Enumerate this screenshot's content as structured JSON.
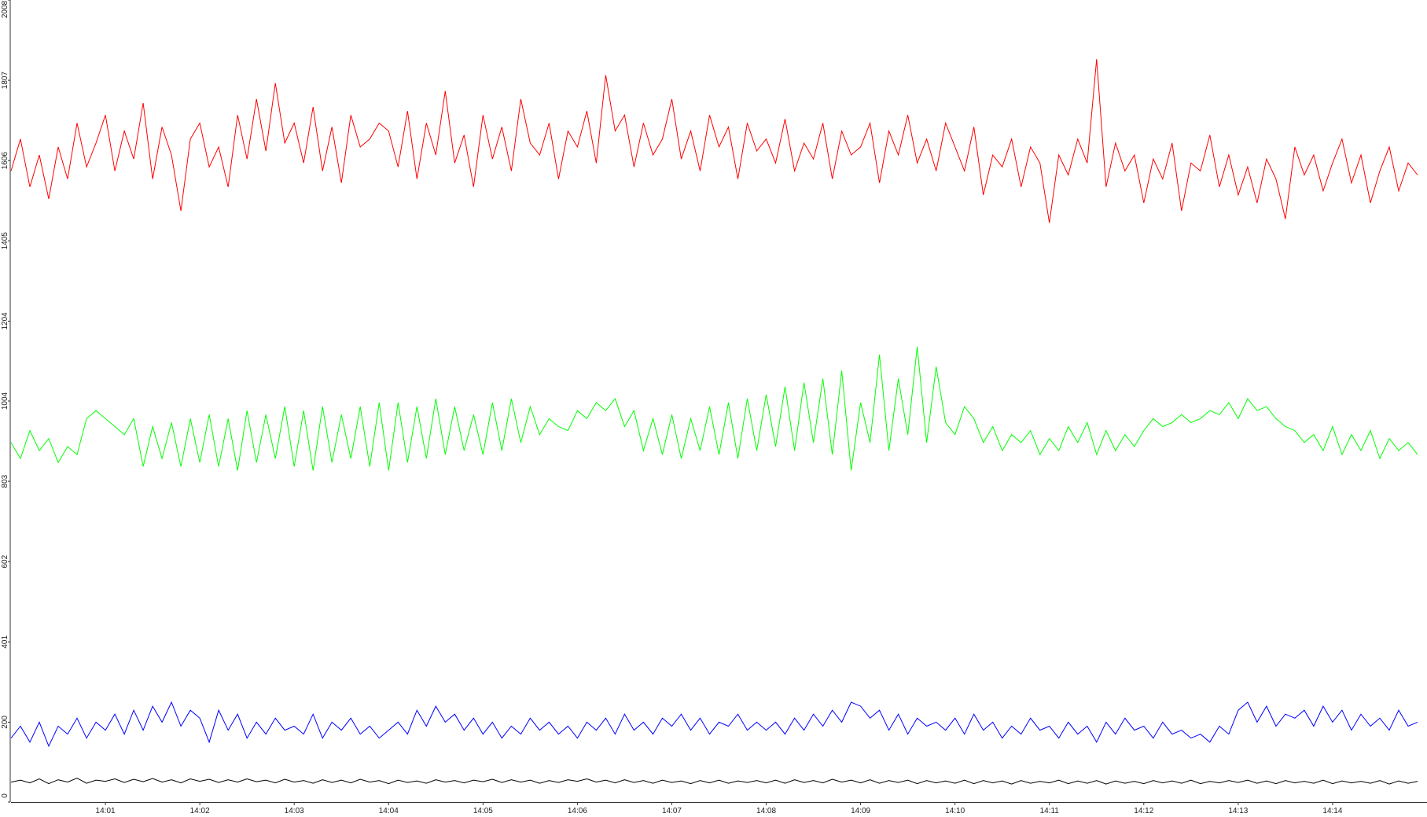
{
  "chart_data": {
    "type": "line",
    "categories": [
      null,
      null,
      null,
      null,
      null,
      null,
      null,
      null,
      null,
      null,
      "14:01",
      null,
      null,
      null,
      null,
      null,
      null,
      null,
      null,
      null,
      "14:02",
      null,
      null,
      null,
      null,
      null,
      null,
      null,
      null,
      null,
      "14:03",
      null,
      null,
      null,
      null,
      null,
      null,
      null,
      null,
      null,
      "14:04",
      null,
      null,
      null,
      null,
      null,
      null,
      null,
      null,
      null,
      "14:05",
      null,
      null,
      null,
      null,
      null,
      null,
      null,
      null,
      null,
      "14:06",
      null,
      null,
      null,
      null,
      null,
      null,
      null,
      null,
      null,
      "14:07",
      null,
      null,
      null,
      null,
      null,
      null,
      null,
      null,
      null,
      "14:08",
      null,
      null,
      null,
      null,
      null,
      null,
      null,
      null,
      null,
      "14:09",
      null,
      null,
      null,
      null,
      null,
      null,
      null,
      null,
      null,
      "14:10",
      null,
      null,
      null,
      null,
      null,
      null,
      null,
      null,
      null,
      "14:11",
      null,
      null,
      null,
      null,
      null,
      null,
      null,
      null,
      null,
      "14:12",
      null,
      null,
      null,
      null,
      null,
      null,
      null,
      null,
      null,
      "14:13",
      null,
      null,
      null,
      null,
      null,
      null,
      null,
      null,
      null,
      "14:14",
      null,
      null,
      null,
      null,
      null,
      null,
      null,
      null,
      null
    ],
    "series": [
      {
        "color": "#ff0000",
        "values": [
          1580,
          1660,
          1540,
          1620,
          1510,
          1640,
          1560,
          1700,
          1590,
          1650,
          1720,
          1580,
          1680,
          1610,
          1750,
          1560,
          1690,
          1620,
          1480,
          1660,
          1700,
          1590,
          1640,
          1540,
          1720,
          1610,
          1760,
          1630,
          1800,
          1650,
          1700,
          1600,
          1740,
          1580,
          1690,
          1550,
          1720,
          1640,
          1660,
          1700,
          1680,
          1590,
          1730,
          1560,
          1700,
          1620,
          1780,
          1600,
          1670,
          1540,
          1720,
          1610,
          1690,
          1580,
          1760,
          1650,
          1620,
          1700,
          1560,
          1680,
          1640,
          1730,
          1600,
          1820,
          1680,
          1720,
          1590,
          1700,
          1620,
          1660,
          1760,
          1610,
          1680,
          1580,
          1720,
          1640,
          1690,
          1560,
          1700,
          1630,
          1660,
          1600,
          1710,
          1580,
          1650,
          1610,
          1700,
          1560,
          1680,
          1620,
          1640,
          1700,
          1550,
          1680,
          1620,
          1720,
          1600,
          1660,
          1580,
          1700,
          1640,
          1580,
          1690,
          1520,
          1620,
          1590,
          1660,
          1540,
          1640,
          1600,
          1450,
          1620,
          1570,
          1660,
          1600,
          1860,
          1540,
          1650,
          1580,
          1620,
          1500,
          1610,
          1560,
          1650,
          1480,
          1600,
          1580,
          1670,
          1540,
          1620,
          1520,
          1590,
          1500,
          1610,
          1560,
          1460,
          1640,
          1570,
          1620,
          1530,
          1600,
          1660,
          1550,
          1620,
          1500,
          1580,
          1640,
          1530,
          1600,
          1570
        ]
      },
      {
        "color": "#00ff00",
        "values": [
          900,
          860,
          930,
          880,
          910,
          850,
          890,
          870,
          960,
          980,
          960,
          940,
          920,
          960,
          840,
          940,
          860,
          950,
          840,
          960,
          850,
          970,
          840,
          960,
          830,
          980,
          850,
          970,
          860,
          990,
          840,
          980,
          830,
          990,
          850,
          970,
          860,
          990,
          840,
          1000,
          830,
          1000,
          850,
          990,
          860,
          1010,
          870,
          990,
          880,
          970,
          870,
          1000,
          880,
          1010,
          900,
          990,
          920,
          960,
          940,
          930,
          980,
          960,
          1000,
          980,
          1010,
          940,
          980,
          880,
          960,
          870,
          970,
          860,
          960,
          880,
          990,
          870,
          1000,
          860,
          1010,
          880,
          1020,
          890,
          1040,
          880,
          1050,
          900,
          1060,
          870,
          1080,
          830,
          1000,
          900,
          1120,
          880,
          1060,
          920,
          1140,
          900,
          1090,
          950,
          920,
          990,
          960,
          900,
          940,
          880,
          920,
          900,
          930,
          870,
          910,
          880,
          940,
          900,
          950,
          870,
          930,
          880,
          920,
          890,
          930,
          960,
          940,
          950,
          970,
          950,
          960,
          980,
          970,
          1000,
          960,
          1010,
          980,
          990,
          960,
          940,
          930,
          900,
          920,
          880,
          940,
          870,
          920,
          880,
          930,
          860,
          910,
          880,
          900,
          870
        ]
      },
      {
        "color": "#0000ff",
        "values": [
          160,
          190,
          150,
          200,
          140,
          190,
          170,
          210,
          160,
          200,
          180,
          220,
          170,
          230,
          180,
          240,
          200,
          250,
          190,
          230,
          210,
          150,
          230,
          180,
          220,
          160,
          200,
          170,
          210,
          180,
          190,
          170,
          220,
          160,
          200,
          180,
          210,
          170,
          190,
          160,
          180,
          200,
          170,
          230,
          190,
          240,
          200,
          220,
          180,
          210,
          170,
          200,
          160,
          190,
          170,
          210,
          180,
          200,
          170,
          190,
          160,
          200,
          180,
          210,
          170,
          220,
          180,
          200,
          170,
          210,
          190,
          220,
          180,
          210,
          170,
          200,
          190,
          220,
          180,
          200,
          180,
          200,
          170,
          210,
          180,
          220,
          190,
          230,
          200,
          250,
          240,
          210,
          230,
          180,
          220,
          170,
          210,
          190,
          200,
          180,
          210,
          170,
          220,
          180,
          200,
          160,
          190,
          170,
          210,
          180,
          190,
          160,
          200,
          170,
          190,
          150,
          200,
          170,
          210,
          180,
          190,
          160,
          200,
          170,
          180,
          160,
          170,
          150,
          190,
          170,
          230,
          250,
          200,
          240,
          190,
          220,
          210,
          230,
          190,
          240,
          200,
          230,
          180,
          220,
          190,
          210,
          180,
          230,
          190,
          200
        ]
      },
      {
        "color": "#000000",
        "values": [
          50,
          55,
          48,
          58,
          46,
          56,
          50,
          60,
          47,
          55,
          52,
          58,
          49,
          57,
          51,
          59,
          50,
          56,
          48,
          58,
          52,
          57,
          49,
          56,
          50,
          58,
          51,
          55,
          48,
          57,
          50,
          54,
          47,
          56,
          49,
          55,
          48,
          57,
          50,
          54,
          46,
          55,
          49,
          53,
          47,
          56,
          50,
          54,
          48,
          55,
          51,
          57,
          49,
          56,
          50,
          55,
          47,
          54,
          49,
          56,
          52,
          58,
          50,
          55,
          48,
          56,
          49,
          54,
          47,
          55,
          49,
          53,
          46,
          54,
          48,
          55,
          47,
          53,
          49,
          54,
          48,
          55,
          47,
          56,
          49,
          54,
          48,
          57,
          50,
          55,
          48,
          56,
          47,
          54,
          49,
          55,
          46,
          54,
          48,
          53,
          47,
          55,
          46,
          54,
          48,
          53,
          45,
          54,
          47,
          52,
          48,
          55,
          46,
          53,
          47,
          54,
          45,
          53,
          47,
          52,
          46,
          54,
          48,
          53,
          47,
          55,
          46,
          52,
          48,
          54,
          49,
          55,
          47,
          53,
          46,
          54,
          48,
          52,
          47,
          55,
          46,
          53,
          48,
          52,
          47,
          54,
          45,
          53,
          47,
          52
        ]
      }
    ],
    "ylim": [
      0,
      2008
    ],
    "yticks": [
      0,
      200,
      401,
      602,
      803,
      1004,
      1204,
      1405,
      1606,
      1807,
      2008
    ]
  }
}
